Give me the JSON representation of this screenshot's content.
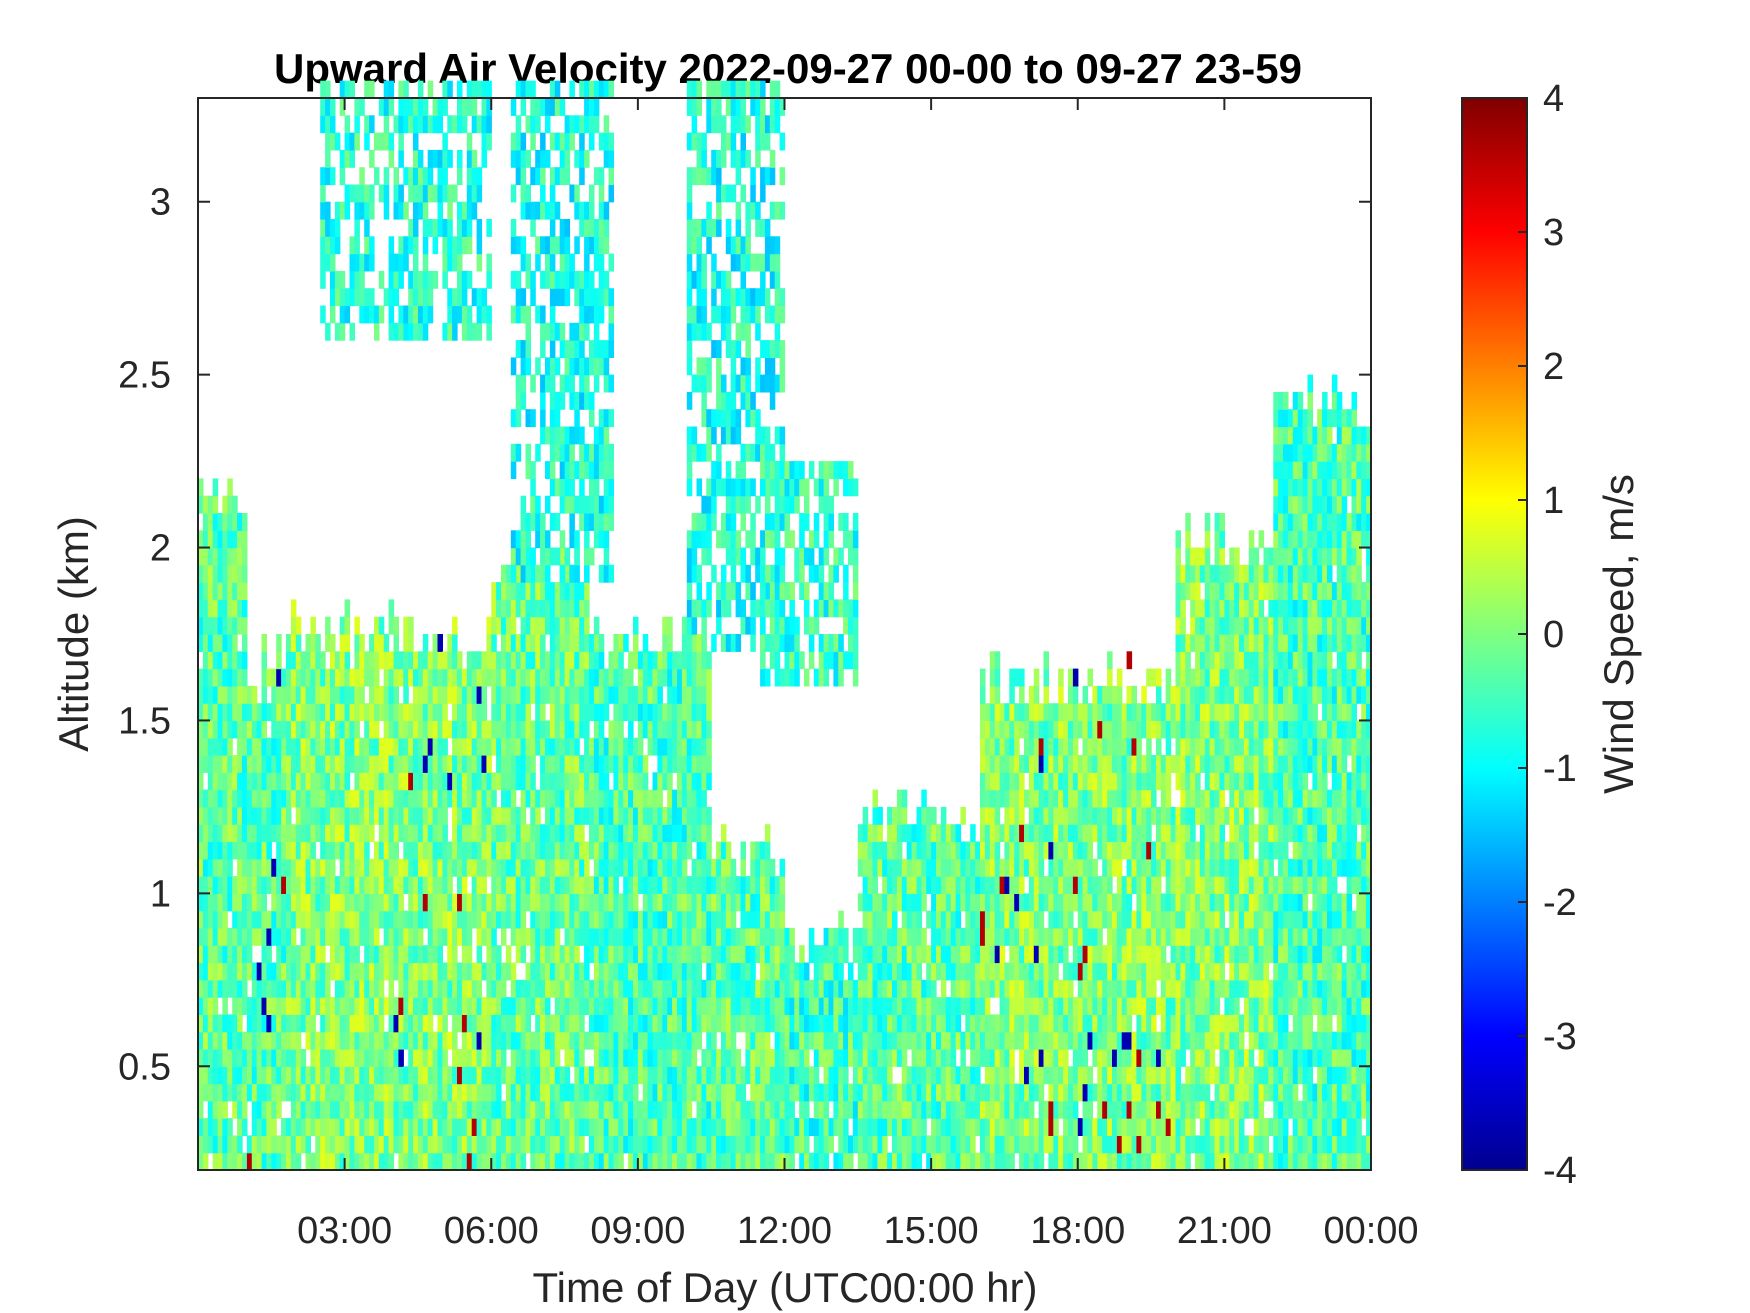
{
  "chart_data": {
    "type": "heatmap",
    "title": "Upward Air Velocity 2022-09-27 00-00 to 09-27 23-59",
    "xlabel": "Time of Day (UTC00:00 hr)",
    "ylabel": "Altitude (km)",
    "colorbar_label": "Wind Speed, m/s",
    "colormap": "jet",
    "xlim_hours": [
      0,
      24
    ],
    "ylim_km": [
      0.2,
      3.3
    ],
    "clim": [
      -4,
      4
    ],
    "x_ticks": [
      {
        "hour": 3,
        "label": "03:00"
      },
      {
        "hour": 6,
        "label": "06:00"
      },
      {
        "hour": 9,
        "label": "09:00"
      },
      {
        "hour": 12,
        "label": "12:00"
      },
      {
        "hour": 15,
        "label": "15:00"
      },
      {
        "hour": 18,
        "label": "18:00"
      },
      {
        "hour": 21,
        "label": "21:00"
      },
      {
        "hour": 24,
        "label": "00:00"
      }
    ],
    "y_ticks": [
      {
        "km": 0.5,
        "label": "0.5"
      },
      {
        "km": 1,
        "label": "1"
      },
      {
        "km": 1.5,
        "label": "1.5"
      },
      {
        "km": 2,
        "label": "2"
      },
      {
        "km": 2.5,
        "label": "2.5"
      },
      {
        "km": 3,
        "label": "3"
      }
    ],
    "colorbar_ticks": [
      {
        "value": 4,
        "label": "4"
      },
      {
        "value": 3,
        "label": "3"
      },
      {
        "value": 2,
        "label": "2"
      },
      {
        "value": 1,
        "label": "1"
      },
      {
        "value": 0,
        "label": "0"
      },
      {
        "value": -1,
        "label": "-1"
      },
      {
        "value": -2,
        "label": "-2"
      },
      {
        "value": -3,
        "label": "-3"
      },
      {
        "value": -4,
        "label": "-4"
      }
    ],
    "data_regions": [
      {
        "t0": 0.0,
        "t1": 1.0,
        "alt_top": 2.15,
        "mean": -0.3
      },
      {
        "t0": 1.0,
        "t1": 1.8,
        "alt_top": 1.65,
        "mean": -0.3,
        "note": "strong +4/-4 streaks"
      },
      {
        "t0": 1.8,
        "t1": 4.0,
        "alt_top": 1.75,
        "mean": 0.0
      },
      {
        "t0": 4.0,
        "t1": 6.0,
        "alt_top": 1.7,
        "mean": 0.0,
        "note": "strong +4/-4 streak near 06:00"
      },
      {
        "t0": 6.0,
        "t1": 8.0,
        "alt_top": 1.95,
        "mean": -0.2
      },
      {
        "t0": 8.0,
        "t1": 10.5,
        "alt_top": 1.7,
        "mean": -0.4
      },
      {
        "t0": 10.5,
        "t1": 12.0,
        "alt_top": 1.1,
        "mean": -0.3
      },
      {
        "t0": 12.0,
        "t1": 13.5,
        "alt_top": 0.85,
        "mean": -0.5
      },
      {
        "t0": 13.5,
        "t1": 16.0,
        "alt_top": 1.2,
        "mean": -0.3
      },
      {
        "t0": 16.0,
        "t1": 20.0,
        "alt_top": 1.6,
        "mean": 0.0,
        "note": "frequent +/- streaks"
      },
      {
        "t0": 20.0,
        "t1": 22.0,
        "alt_top": 2.0,
        "mean": 0.0
      },
      {
        "t0": 22.0,
        "t1": 24.0,
        "alt_top": 2.4,
        "mean": -0.4
      }
    ],
    "upper_patches": [
      {
        "t0": 2.5,
        "t1": 6.0,
        "alt0": 2.6,
        "alt1": 3.3,
        "mean": -0.7
      },
      {
        "t0": 6.4,
        "t1": 8.5,
        "alt0": 1.9,
        "alt1": 3.3,
        "mean": -0.8
      },
      {
        "t0": 10.0,
        "t1": 12.0,
        "alt0": 1.7,
        "alt1": 3.3,
        "mean": -0.8
      },
      {
        "t0": 11.5,
        "t1": 13.5,
        "alt0": 1.6,
        "alt1": 2.2,
        "mean": -0.6
      }
    ]
  }
}
